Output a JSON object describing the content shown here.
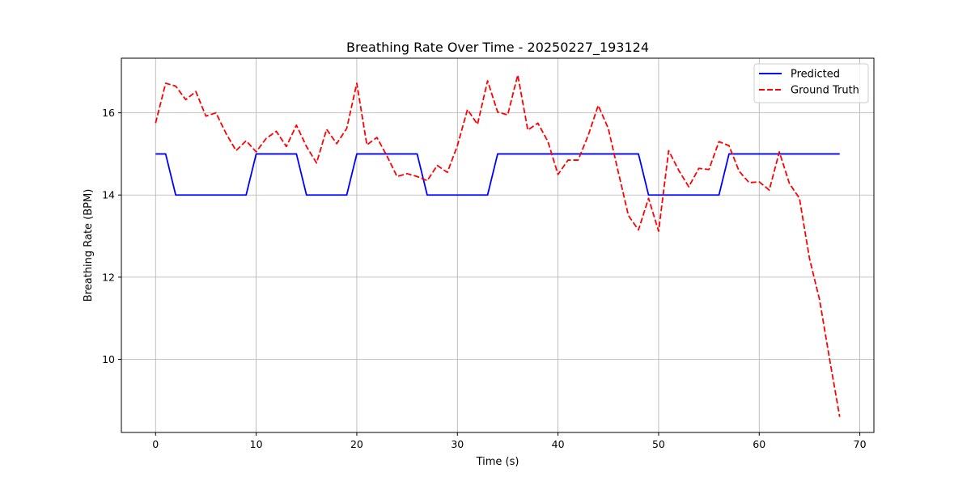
{
  "chart_data": {
    "type": "line",
    "title": "Breathing Rate Over Time - 20250227_193124",
    "xlabel": "Time (s)",
    "ylabel": "Breathing Rate (BPM)",
    "xlim": [
      -3.4,
      71.4
    ],
    "ylim": [
      8.22,
      17.33
    ],
    "xticks": [
      0,
      10,
      20,
      30,
      40,
      50,
      60,
      70
    ],
    "yticks": [
      10,
      12,
      14,
      16
    ],
    "grid": true,
    "legend_position": "top-right",
    "x": [
      0,
      1,
      2,
      3,
      4,
      5,
      6,
      7,
      8,
      9,
      10,
      11,
      12,
      13,
      14,
      15,
      16,
      17,
      18,
      19,
      20,
      21,
      22,
      23,
      24,
      25,
      26,
      27,
      28,
      29,
      30,
      31,
      32,
      33,
      34,
      35,
      36,
      37,
      38,
      39,
      40,
      41,
      42,
      43,
      44,
      45,
      46,
      47,
      48,
      49,
      50,
      51,
      52,
      53,
      54,
      55,
      56,
      57,
      58,
      59,
      60,
      61,
      62,
      63,
      64,
      65,
      66,
      67,
      68
    ],
    "series": [
      {
        "name": "Predicted",
        "color": "#0000ff",
        "style": "solid",
        "values": [
          15,
          15,
          14,
          14,
          14,
          14,
          14,
          14,
          14,
          14,
          15,
          15,
          15,
          15,
          15,
          14,
          14,
          14,
          14,
          14,
          15,
          15,
          15,
          15,
          15,
          15,
          15,
          14,
          14,
          14,
          14,
          14,
          14,
          14,
          15,
          15,
          15,
          15,
          15,
          15,
          15,
          15,
          15,
          15,
          15,
          15,
          15,
          15,
          15,
          14,
          14,
          14,
          14,
          14,
          14,
          14,
          14,
          15,
          15,
          15,
          15,
          15,
          15,
          15,
          15,
          15,
          15,
          15,
          15
        ]
      },
      {
        "name": "Ground Truth",
        "color": "#ff0000",
        "style": "dashed",
        "values": [
          15.75,
          16.72,
          16.65,
          16.32,
          16.52,
          15.92,
          16.0,
          15.5,
          15.08,
          15.32,
          15.05,
          15.38,
          15.55,
          15.18,
          15.7,
          15.18,
          14.78,
          15.6,
          15.25,
          15.62,
          16.72,
          15.22,
          15.4,
          14.95,
          14.45,
          14.52,
          14.45,
          14.35,
          14.72,
          14.55,
          15.2,
          16.08,
          15.72,
          16.78,
          16.02,
          15.95,
          16.92,
          15.58,
          15.75,
          15.3,
          14.5,
          14.85,
          14.85,
          15.45,
          16.18,
          15.62,
          14.55,
          13.5,
          13.15,
          13.92,
          13.12,
          15.08,
          14.6,
          14.2,
          14.65,
          14.62,
          15.3,
          15.2,
          14.58,
          14.3,
          14.32,
          14.12,
          15.05,
          14.28,
          13.92,
          12.45,
          11.45,
          10.0,
          8.6
        ]
      }
    ]
  }
}
